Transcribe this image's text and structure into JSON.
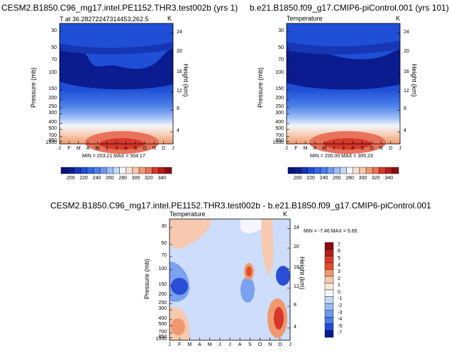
{
  "chart_data": [
    {
      "type": "heatmap",
      "title": "CESM2.B1850.C96_mg17.intel.PE1152.THR3.test002b (yrs 1)",
      "subtitle_left": "T at 36.28272247314453,262.5",
      "subtitle_right": "K",
      "ylabel": "Pressure (mb)",
      "ylabel_right": "Height (km)",
      "x_ticks": [
        "J",
        "F",
        "M",
        "A",
        "M",
        "J",
        "J",
        "A",
        "S",
        "O",
        "N",
        "D",
        "J"
      ],
      "y_ticks": [
        "30",
        "50",
        "70",
        "100",
        "150",
        "200",
        "250",
        "300",
        "400",
        "500",
        "700",
        "850",
        "1000"
      ],
      "y_ticks_right": [
        "24",
        "20",
        "16",
        "12",
        "8",
        "4"
      ],
      "minmax": "MIN = 203.21 MAX = 304.17",
      "colorbar_labels": [
        "200",
        "220",
        "240",
        "260",
        "280",
        "300",
        "320",
        "340"
      ],
      "min": 203.21,
      "max": 304.17
    },
    {
      "type": "heatmap",
      "title": "b.e21.B1850.f09_g17.CMIP6-piControl.001 (yrs 101)",
      "subtitle_left": "Temperature",
      "subtitle_right": "K",
      "ylabel": "Pressure (mb)",
      "ylabel_right": "Height (km)",
      "x_ticks": [
        "J",
        "F",
        "M",
        "A",
        "M",
        "J",
        "J",
        "A",
        "S",
        "O",
        "N",
        "D",
        "J"
      ],
      "y_ticks": [
        "30",
        "50",
        "70",
        "100",
        "150",
        "200",
        "250",
        "300",
        "400",
        "500",
        "700",
        "850",
        "1000"
      ],
      "y_ticks_right": [
        "24",
        "20",
        "16",
        "12",
        "8",
        "4"
      ],
      "minmax": "MIN = 200.00 MAX = 305.23",
      "colorbar_labels": [
        "200",
        "220",
        "240",
        "260",
        "280",
        "300",
        "320",
        "340"
      ],
      "min": 200.0,
      "max": 305.23
    },
    {
      "type": "heatmap",
      "title": "CESM2.B1850.C96_mg17.intel.PE1152.THR3.test002b - b.e21.B1850.f09_g17.CMIP6-piControl.001",
      "subtitle_left": "Temperature",
      "subtitle_right": "K",
      "ylabel": "Pressure (mb)",
      "ylabel_right": "Height (km)",
      "x_ticks": [
        "J",
        "F",
        "M",
        "A",
        "M",
        "J",
        "J",
        "A",
        "S",
        "O",
        "N",
        "D",
        "J"
      ],
      "y_ticks": [
        "30",
        "50",
        "70",
        "100",
        "150",
        "200",
        "250",
        "300",
        "400",
        "500",
        "700",
        "850",
        "1000"
      ],
      "y_ticks_right": [
        "24",
        "20",
        "16",
        "12",
        "8",
        "4"
      ],
      "minmax": "MIN =  -7.46 MAX =   5.65",
      "colorbar_labels": [
        "7",
        "6",
        "5",
        "4",
        "3",
        "2",
        "1",
        "0",
        "-1",
        "-2",
        "-3",
        "-4",
        "-5",
        "-7"
      ],
      "min": -7.46,
      "max": 5.65
    }
  ],
  "colors": {
    "blue_dark": "#0a1c8f",
    "blue": "#1f4fd6",
    "blue_mid": "#4a7ee8",
    "blue_light": "#9cbdf5",
    "white": "#f4f6fb",
    "orange_light": "#f6c9b0",
    "orange": "#f0996f",
    "red": "#d8382a",
    "red_dark": "#8a0c10"
  }
}
